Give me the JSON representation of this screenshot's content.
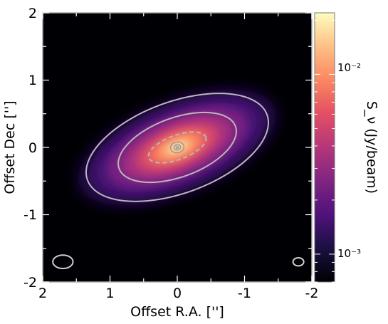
{
  "chart_data": {
    "type": "heatmap",
    "xlabel": "Offset R.A. ['']",
    "ylabel": "Offset Dec ['']",
    "xlim": [
      2,
      -2
    ],
    "ylim": [
      -2,
      2
    ],
    "x_ticks": [
      2,
      1,
      0,
      -1,
      -2
    ],
    "x_tick_labels": [
      "2",
      "1",
      "0",
      "-1",
      "-2"
    ],
    "y_ticks": [
      2,
      1,
      0,
      -1,
      -2
    ],
    "y_tick_labels": [
      "2",
      "1",
      "0",
      "-1",
      "-2"
    ],
    "colormap": "magma",
    "colorbar": {
      "label": "S_ν (Jy/beam)",
      "scale": "log",
      "range": [
        0.0007,
        0.022
      ],
      "tick_values": [
        0.001,
        0.01
      ],
      "tick_labels": [
        "10⁻³",
        "10⁻²"
      ]
    },
    "emission": {
      "center": [
        0.0,
        0.0
      ],
      "major_axis_arcsec": 1.45,
      "minor_axis_arcsec": 0.62,
      "position_angle_deg": 68,
      "peak_jy_per_beam": 0.02
    },
    "contour_ellipses": [
      {
        "a": 0.45,
        "b": 0.18,
        "dash": "dashed"
      },
      {
        "a": 0.92,
        "b": 0.44,
        "dash": "solid"
      },
      {
        "a": 1.42,
        "b": 0.68,
        "dash": "solid"
      }
    ],
    "beams": [
      {
        "x": 1.7,
        "y": -1.7,
        "bmaj": 0.15,
        "bmin": 0.1
      },
      {
        "x": -1.8,
        "y": -1.7,
        "bmaj": 0.08,
        "bmin": 0.06
      }
    ],
    "grid": false
  }
}
